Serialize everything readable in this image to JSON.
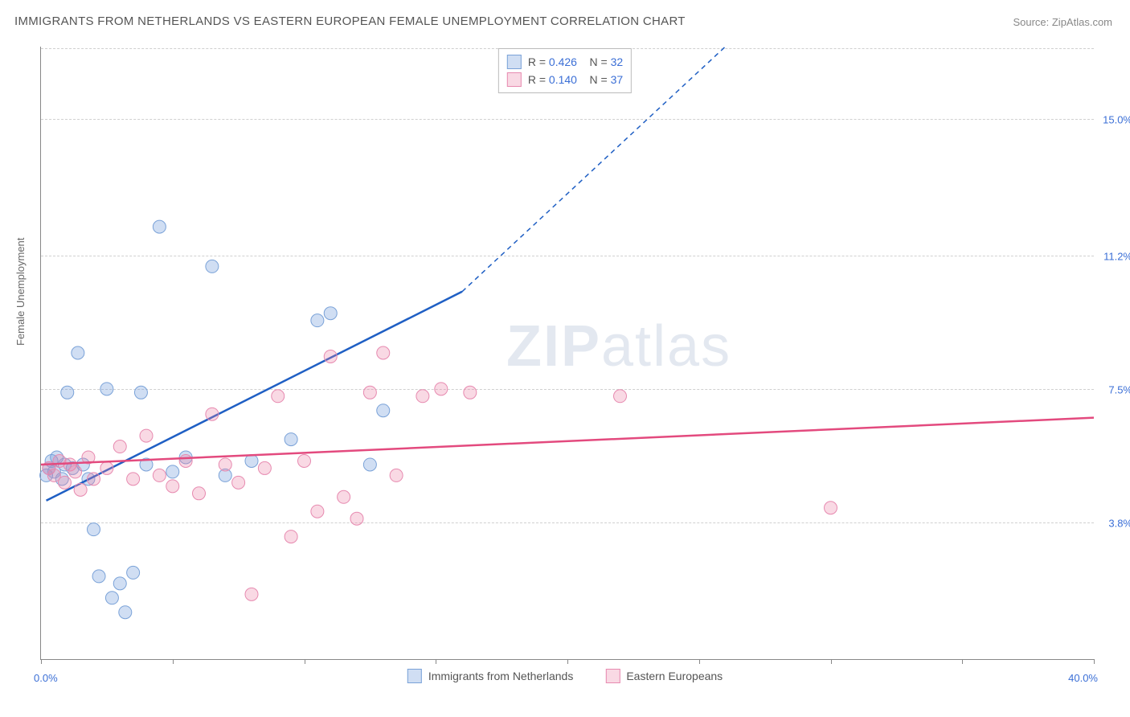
{
  "title": "IMMIGRANTS FROM NETHERLANDS VS EASTERN EUROPEAN FEMALE UNEMPLOYMENT CORRELATION CHART",
  "source_label": "Source: ZipAtlas.com",
  "y_axis_label": "Female Unemployment",
  "x_origin_label": "0.0%",
  "x_max_label": "40.0%",
  "watermark_bold": "ZIP",
  "watermark_rest": "atlas",
  "chart": {
    "type": "scatter",
    "xlim": [
      0,
      40
    ],
    "ylim": [
      0,
      17
    ],
    "y_ticks": [
      {
        "pos_pct": 3.8,
        "label": "3.8%"
      },
      {
        "pos_pct": 7.5,
        "label": "7.5%"
      },
      {
        "pos_pct": 11.2,
        "label": "11.2%"
      },
      {
        "pos_pct": 15.0,
        "label": "15.0%"
      }
    ],
    "x_ticks_pos": [
      0,
      12.5,
      25,
      37.5,
      50,
      62.5,
      75,
      87.5,
      100
    ],
    "background_color": "#ffffff",
    "grid_color": "#d0d0d0",
    "series": [
      {
        "key": "netherlands",
        "label": "Immigrants from Netherlands",
        "color_fill": "rgba(120,160,220,0.35)",
        "color_stroke": "#7aa2d8",
        "line_color": "#1f5fc4",
        "marker_r": 8,
        "R": "0.426",
        "N": "32",
        "regression": {
          "x1": 0.2,
          "y1": 4.4,
          "x2": 16,
          "y2": 10.2,
          "x2_dash": 26,
          "y2_dash": 17.0
        },
        "points": [
          {
            "x": 0.2,
            "y": 5.1
          },
          {
            "x": 0.3,
            "y": 5.3
          },
          {
            "x": 0.4,
            "y": 5.5
          },
          {
            "x": 0.5,
            "y": 5.2
          },
          {
            "x": 0.6,
            "y": 5.6
          },
          {
            "x": 0.8,
            "y": 5.0
          },
          {
            "x": 0.9,
            "y": 5.4
          },
          {
            "x": 1.0,
            "y": 7.4
          },
          {
            "x": 1.2,
            "y": 5.3
          },
          {
            "x": 1.4,
            "y": 8.5
          },
          {
            "x": 1.6,
            "y": 5.4
          },
          {
            "x": 1.8,
            "y": 5.0
          },
          {
            "x": 2.0,
            "y": 3.6
          },
          {
            "x": 2.2,
            "y": 2.3
          },
          {
            "x": 2.5,
            "y": 7.5
          },
          {
            "x": 2.7,
            "y": 1.7
          },
          {
            "x": 3.0,
            "y": 2.1
          },
          {
            "x": 3.2,
            "y": 1.3
          },
          {
            "x": 3.5,
            "y": 2.4
          },
          {
            "x": 3.8,
            "y": 7.4
          },
          {
            "x": 4.0,
            "y": 5.4
          },
          {
            "x": 4.5,
            "y": 12.0
          },
          {
            "x": 5.0,
            "y": 5.2
          },
          {
            "x": 5.5,
            "y": 5.6
          },
          {
            "x": 6.5,
            "y": 10.9
          },
          {
            "x": 7.0,
            "y": 5.1
          },
          {
            "x": 8.0,
            "y": 5.5
          },
          {
            "x": 9.5,
            "y": 6.1
          },
          {
            "x": 10.5,
            "y": 9.4
          },
          {
            "x": 11.0,
            "y": 9.6
          },
          {
            "x": 12.5,
            "y": 5.4
          },
          {
            "x": 13.0,
            "y": 6.9
          }
        ]
      },
      {
        "key": "eastern",
        "label": "Eastern Europeans",
        "color_fill": "rgba(235,130,165,0.30)",
        "color_stroke": "#e78ab0",
        "line_color": "#e34a7e",
        "marker_r": 8,
        "R": "0.140",
        "N": "37",
        "regression": {
          "x1": 0,
          "y1": 5.4,
          "x2": 40,
          "y2": 6.7
        },
        "points": [
          {
            "x": 0.3,
            "y": 5.3
          },
          {
            "x": 0.5,
            "y": 5.1
          },
          {
            "x": 0.7,
            "y": 5.5
          },
          {
            "x": 0.9,
            "y": 4.9
          },
          {
            "x": 1.1,
            "y": 5.4
          },
          {
            "x": 1.3,
            "y": 5.2
          },
          {
            "x": 1.5,
            "y": 4.7
          },
          {
            "x": 1.8,
            "y": 5.6
          },
          {
            "x": 2.0,
            "y": 5.0
          },
          {
            "x": 2.5,
            "y": 5.3
          },
          {
            "x": 3.0,
            "y": 5.9
          },
          {
            "x": 3.5,
            "y": 5.0
          },
          {
            "x": 4.0,
            "y": 6.2
          },
          {
            "x": 4.5,
            "y": 5.1
          },
          {
            "x": 5.0,
            "y": 4.8
          },
          {
            "x": 5.5,
            "y": 5.5
          },
          {
            "x": 6.0,
            "y": 4.6
          },
          {
            "x": 6.5,
            "y": 6.8
          },
          {
            "x": 7.0,
            "y": 5.4
          },
          {
            "x": 7.5,
            "y": 4.9
          },
          {
            "x": 8.0,
            "y": 1.8
          },
          {
            "x": 8.5,
            "y": 5.3
          },
          {
            "x": 9.0,
            "y": 7.3
          },
          {
            "x": 9.5,
            "y": 3.4
          },
          {
            "x": 10.0,
            "y": 5.5
          },
          {
            "x": 10.5,
            "y": 4.1
          },
          {
            "x": 11.0,
            "y": 8.4
          },
          {
            "x": 11.5,
            "y": 4.5
          },
          {
            "x": 12.0,
            "y": 3.9
          },
          {
            "x": 12.5,
            "y": 7.4
          },
          {
            "x": 13.0,
            "y": 8.5
          },
          {
            "x": 13.5,
            "y": 5.1
          },
          {
            "x": 14.5,
            "y": 7.3
          },
          {
            "x": 15.2,
            "y": 7.5
          },
          {
            "x": 16.3,
            "y": 7.4
          },
          {
            "x": 22.0,
            "y": 7.3
          },
          {
            "x": 30.0,
            "y": 4.2
          }
        ]
      }
    ]
  },
  "legend_top": {
    "r_prefix": "R =",
    "n_prefix": "N ="
  }
}
